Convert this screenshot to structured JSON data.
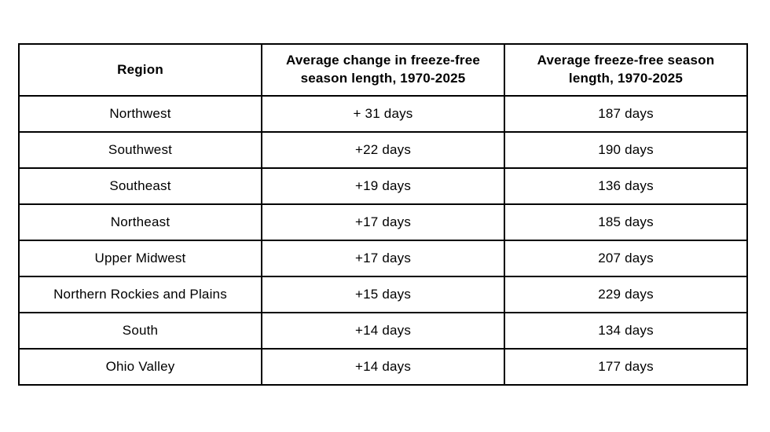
{
  "colors": {
    "background": "#ffffff",
    "border": "#000000",
    "text": "#000000"
  },
  "table": {
    "headers": [
      "Region",
      "Average change in freeze-free season length, 1970-2025",
      "Average freeze-free season length, 1970-2025"
    ],
    "rows": [
      [
        "Northwest",
        "+ 31 days",
        "187 days"
      ],
      [
        "Southwest",
        "+22 days",
        "190 days"
      ],
      [
        "Southeast",
        "+19 days",
        "136 days"
      ],
      [
        "Northeast",
        "+17 days",
        "185 days"
      ],
      [
        "Upper Midwest",
        "+17 days",
        "207 days"
      ],
      [
        "Northern Rockies and Plains",
        "+15 days",
        "229 days"
      ],
      [
        "South",
        "+14 days",
        "134 days"
      ],
      [
        "Ohio Valley",
        "+14 days",
        "177 days"
      ]
    ]
  },
  "chart_data": {
    "type": "table",
    "title": "",
    "columns": [
      "Region",
      "Average change in freeze-free season length, 1970-2025",
      "Average freeze-free season length, 1970-2025"
    ],
    "regions": [
      "Northwest",
      "Southwest",
      "Southeast",
      "Northeast",
      "Upper Midwest",
      "Northern Rockies and Plains",
      "South",
      "Ohio Valley"
    ],
    "avg_change_days": [
      31,
      22,
      19,
      17,
      17,
      15,
      14,
      14
    ],
    "avg_season_length_days": [
      187,
      190,
      136,
      185,
      207,
      229,
      134,
      177
    ],
    "units": "days",
    "period": "1970-2025"
  }
}
